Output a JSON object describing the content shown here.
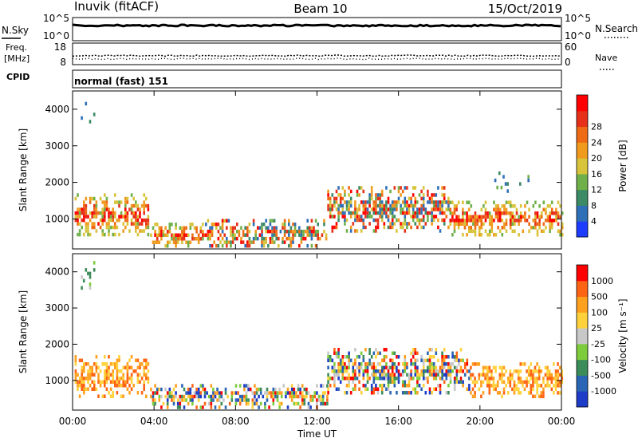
{
  "header": {
    "station": "Inuvik (fitACF)",
    "beam": "Beam 10",
    "date": "15/Oct/2019"
  },
  "strips": {
    "nsky": {
      "label": "N.Sky",
      "right_label": "N.Search",
      "left_ticks": [
        "10^5",
        "10^0"
      ],
      "right_ticks": [
        "10^5",
        "10^0"
      ]
    },
    "freq": {
      "label_line1": "Freq.",
      "label_line2": "[MHz]",
      "right_label": "Nave",
      "left_ticks": [
        "18",
        "8"
      ],
      "right_ticks": [
        "60",
        "0"
      ]
    },
    "cpid": {
      "label": "CPID",
      "value": "normal (fast) 151"
    }
  },
  "x_ticks": [
    "00:00",
    "04:00",
    "08:00",
    "12:00",
    "16:00",
    "20:00",
    "00:00"
  ],
  "xlabel": "Time UT",
  "chart_data": [
    {
      "type": "heatmap",
      "panel": "power",
      "ylabel": "Slant Range [km]",
      "y_ticks": [
        1000,
        2000,
        3000,
        4000
      ],
      "ylim": [
        180,
        4500
      ],
      "xlim_hours": [
        0,
        24
      ],
      "colorbar": {
        "label": "Power [dB]",
        "ticks": [
          "4",
          "8",
          "12",
          "16",
          "20",
          "24",
          "28"
        ],
        "colors": [
          "#1e3cff",
          "#2f6fb8",
          "#3c8a66",
          "#6fb04a",
          "#d8c43a",
          "#f09a1e",
          "#ee6a14",
          "#e6301a",
          "#ff0000"
        ]
      },
      "regions": [
        {
          "t0": 0.1,
          "t1": 3.7,
          "r0": 600,
          "r1": 1700,
          "level": "high"
        },
        {
          "t0": 3.8,
          "t1": 6.5,
          "r0": 300,
          "r1": 900,
          "level": "high"
        },
        {
          "t0": 6.5,
          "t1": 12.5,
          "r0": 300,
          "r1": 1000,
          "level": "mixed"
        },
        {
          "t0": 12.5,
          "t1": 18.5,
          "r0": 700,
          "r1": 1900,
          "level": "mixed"
        },
        {
          "t0": 18.5,
          "t1": 24,
          "r0": 600,
          "r1": 1500,
          "level": "high"
        },
        {
          "t0": 0.3,
          "t1": 1.2,
          "r0": 3500,
          "r1": 4300,
          "level": "low"
        },
        {
          "t0": 20.5,
          "t1": 22.5,
          "r0": 1800,
          "r1": 2300,
          "level": "low"
        }
      ]
    },
    {
      "type": "heatmap",
      "panel": "velocity",
      "ylabel": "Slant Range [km]",
      "y_ticks": [
        1000,
        2000,
        3000,
        4000
      ],
      "ylim": [
        180,
        4500
      ],
      "xlim_hours": [
        0,
        24
      ],
      "colorbar": {
        "label": "Velocity [m s⁻¹]",
        "ticks": [
          "1000",
          "500",
          "100",
          "25",
          "-25",
          "-100",
          "-500",
          "-1000"
        ],
        "colors": [
          "#1e3cc8",
          "#2a64b4",
          "#3c8c5a",
          "#7ccc3c",
          "#c8c8c8",
          "#ffd23c",
          "#ffa01e",
          "#ff6414",
          "#ff0000"
        ]
      },
      "regions": [
        {
          "t0": 0.1,
          "t1": 3.7,
          "r0": 600,
          "r1": 1700,
          "level": "negative"
        },
        {
          "t0": 3.8,
          "t1": 12.5,
          "r0": 300,
          "r1": 900,
          "level": "mixed"
        },
        {
          "t0": 12.5,
          "t1": 19.5,
          "r0": 700,
          "r1": 1900,
          "level": "mixed"
        },
        {
          "t0": 19.5,
          "t1": 24,
          "r0": 600,
          "r1": 1500,
          "level": "negative"
        },
        {
          "t0": 0.3,
          "t1": 1.2,
          "r0": 3500,
          "r1": 4300,
          "level": "low"
        }
      ]
    }
  ]
}
